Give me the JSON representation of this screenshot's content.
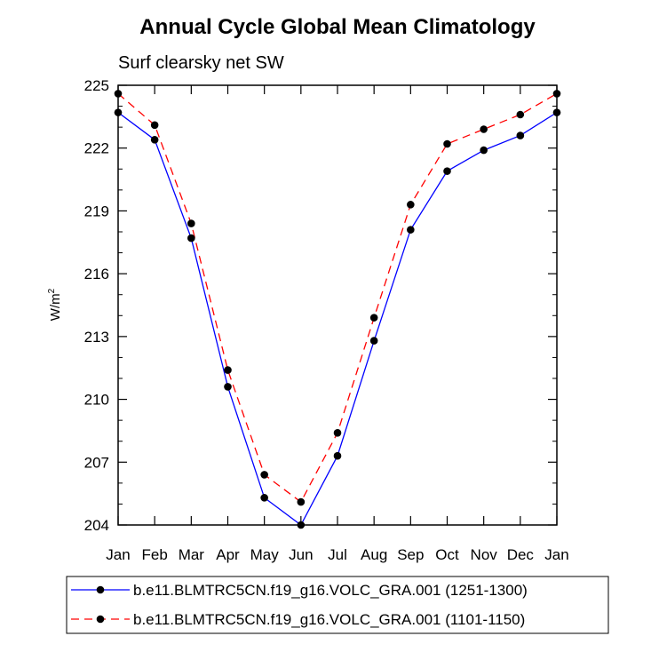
{
  "chart_data": {
    "type": "line",
    "title": "Annual Cycle Global Mean Climatology",
    "subtitle": "Surf clearsky net SW",
    "ylabel_base": "W/m",
    "ylabel_sup": "2",
    "categories": [
      "Jan",
      "Feb",
      "Mar",
      "Apr",
      "May",
      "Jun",
      "Jul",
      "Aug",
      "Sep",
      "Oct",
      "Nov",
      "Dec",
      "Jan"
    ],
    "ylim": [
      204,
      225
    ],
    "yticks": [
      204,
      207,
      210,
      213,
      216,
      219,
      222,
      225
    ],
    "grid": false,
    "legend_position": "bottom",
    "series": [
      {
        "name": "b.e11.BLMTRC5CN.f19_g16.VOLC_GRA.001 (1251-1300)",
        "color": "#0000ff",
        "dash": "solid",
        "values": [
          223.7,
          222.4,
          217.7,
          210.6,
          205.3,
          204.0,
          207.3,
          212.8,
          218.1,
          220.9,
          221.9,
          222.6,
          223.7
        ]
      },
      {
        "name": "b.e11.BLMTRC5CN.f19_g16.VOLC_GRA.001 (1101-1150)",
        "color": "#ff0000",
        "dash": "dashed",
        "values": [
          224.6,
          223.1,
          218.4,
          211.4,
          206.4,
          205.1,
          208.4,
          213.9,
          219.3,
          222.2,
          222.9,
          223.6,
          224.6
        ]
      }
    ]
  }
}
